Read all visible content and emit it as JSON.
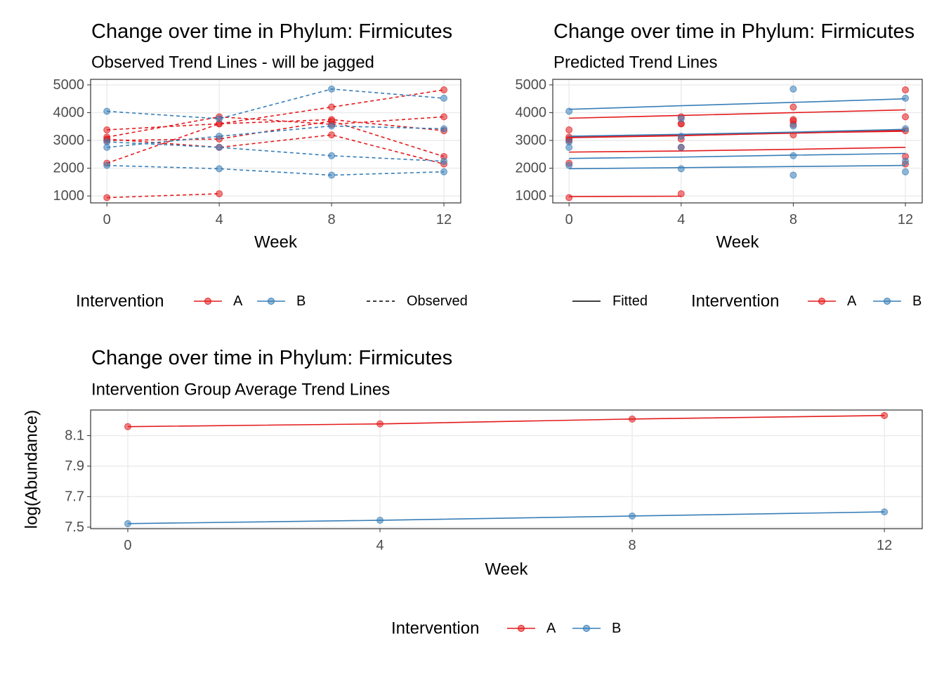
{
  "chart_data": [
    {
      "type": "line",
      "title": "Change over time in Phylum: Firmicutes",
      "subtitle": "Observed Trend Lines - will be jagged",
      "xlabel": "Week",
      "legend_title": "Intervention",
      "linetype_label": "Observed",
      "linestyle": "dashed",
      "points": true,
      "x": [
        0,
        4,
        8,
        12
      ],
      "xlim": [
        -0.58,
        12.6
      ],
      "xticks": [
        0,
        4,
        8,
        12
      ],
      "ylim": [
        750,
        5200
      ],
      "yticks": [
        1000,
        2000,
        3000,
        4000,
        5000
      ],
      "grid": true,
      "series": [
        {
          "name": "A",
          "color": "#E41A1C",
          "values": [
            [
              2180,
              3600,
              4200,
              4820
            ],
            [
              3380,
              3600,
              3750,
              3350
            ],
            [
              3120,
              3850,
              3580,
              3850
            ],
            [
              3050,
              2750,
              3200,
              2150
            ],
            [
              3000,
              3050,
              3700,
              2420
            ],
            [
              940,
              1080,
              null,
              null
            ]
          ]
        },
        {
          "name": "B",
          "color": "#377EB8",
          "values": [
            [
              4050,
              3780,
              4850,
              4520
            ],
            [
              2750,
              3150,
              3520,
              3420
            ],
            [
              2950,
              2750,
              2450,
              2250
            ],
            [
              2100,
              1980,
              1750,
              1870
            ]
          ]
        }
      ]
    },
    {
      "type": "line",
      "title": "Change over time in Phylum: Firmicutes",
      "subtitle": "Predicted Trend Lines",
      "xlabel": "Week",
      "legend_title": "Intervention",
      "linetype_label": "Fitted",
      "linestyle": "solid",
      "points": true,
      "x": [
        0,
        4,
        8,
        12
      ],
      "xlim": [
        -0.58,
        12.6
      ],
      "xticks": [
        0,
        4,
        8,
        12
      ],
      "ylim": [
        750,
        5200
      ],
      "yticks": [
        1000,
        2000,
        3000,
        4000,
        5000
      ],
      "grid": true,
      "series": [
        {
          "name": "A",
          "color": "#E41A1C",
          "values": [
            [
              2180,
              3600,
              4200,
              4820
            ],
            [
              3380,
              3600,
              3750,
              3350
            ],
            [
              3120,
              3850,
              3580,
              3850
            ],
            [
              3050,
              2750,
              3200,
              2150
            ],
            [
              3000,
              3050,
              3700,
              2420
            ],
            [
              940,
              1080,
              null,
              null
            ]
          ],
          "fitted": [
            [
              3800,
              3900,
              4000,
              4100
            ],
            [
              3150,
              3200,
              3270,
              3330
            ],
            [
              3100,
              3170,
              3270,
              3380
            ],
            [
              2580,
              2620,
              2680,
              2750
            ],
            [
              3120,
              3180,
              3260,
              3360
            ],
            [
              980,
              990,
              null,
              null
            ]
          ]
        },
        {
          "name": "B",
          "color": "#377EB8",
          "values": [
            [
              4050,
              3780,
              4850,
              4520
            ],
            [
              2750,
              3150,
              3520,
              3420
            ],
            [
              2950,
              2750,
              2450,
              2250
            ],
            [
              2100,
              1980,
              1750,
              1870
            ]
          ],
          "fitted": [
            [
              4120,
              4250,
              4370,
              4500
            ],
            [
              3150,
              3220,
              3300,
              3400
            ],
            [
              2350,
              2400,
              2470,
              2530
            ],
            [
              1980,
              2020,
              2060,
              2100
            ]
          ]
        }
      ]
    },
    {
      "type": "line",
      "title": "Change over time in Phylum: Firmicutes",
      "subtitle": "Intervention Group Average Trend Lines",
      "xlabel": "Week",
      "ylabel": "log(Abundance)",
      "legend_title": "Intervention",
      "linestyle": "solid",
      "points": true,
      "x": [
        0,
        4,
        8,
        12
      ],
      "xlim": [
        -0.59,
        12.6
      ],
      "xticks": [
        0,
        4,
        8,
        12
      ],
      "ylim": [
        7.49,
        8.268
      ],
      "yticks": [
        7.5,
        7.7,
        7.9,
        8.1
      ],
      "grid": true,
      "series": [
        {
          "name": "A",
          "color": "#E41A1C",
          "values": [
            8.159,
            8.177,
            8.209,
            8.232
          ]
        },
        {
          "name": "B",
          "color": "#377EB8",
          "values": [
            7.523,
            7.545,
            7.573,
            7.6
          ]
        }
      ]
    }
  ]
}
